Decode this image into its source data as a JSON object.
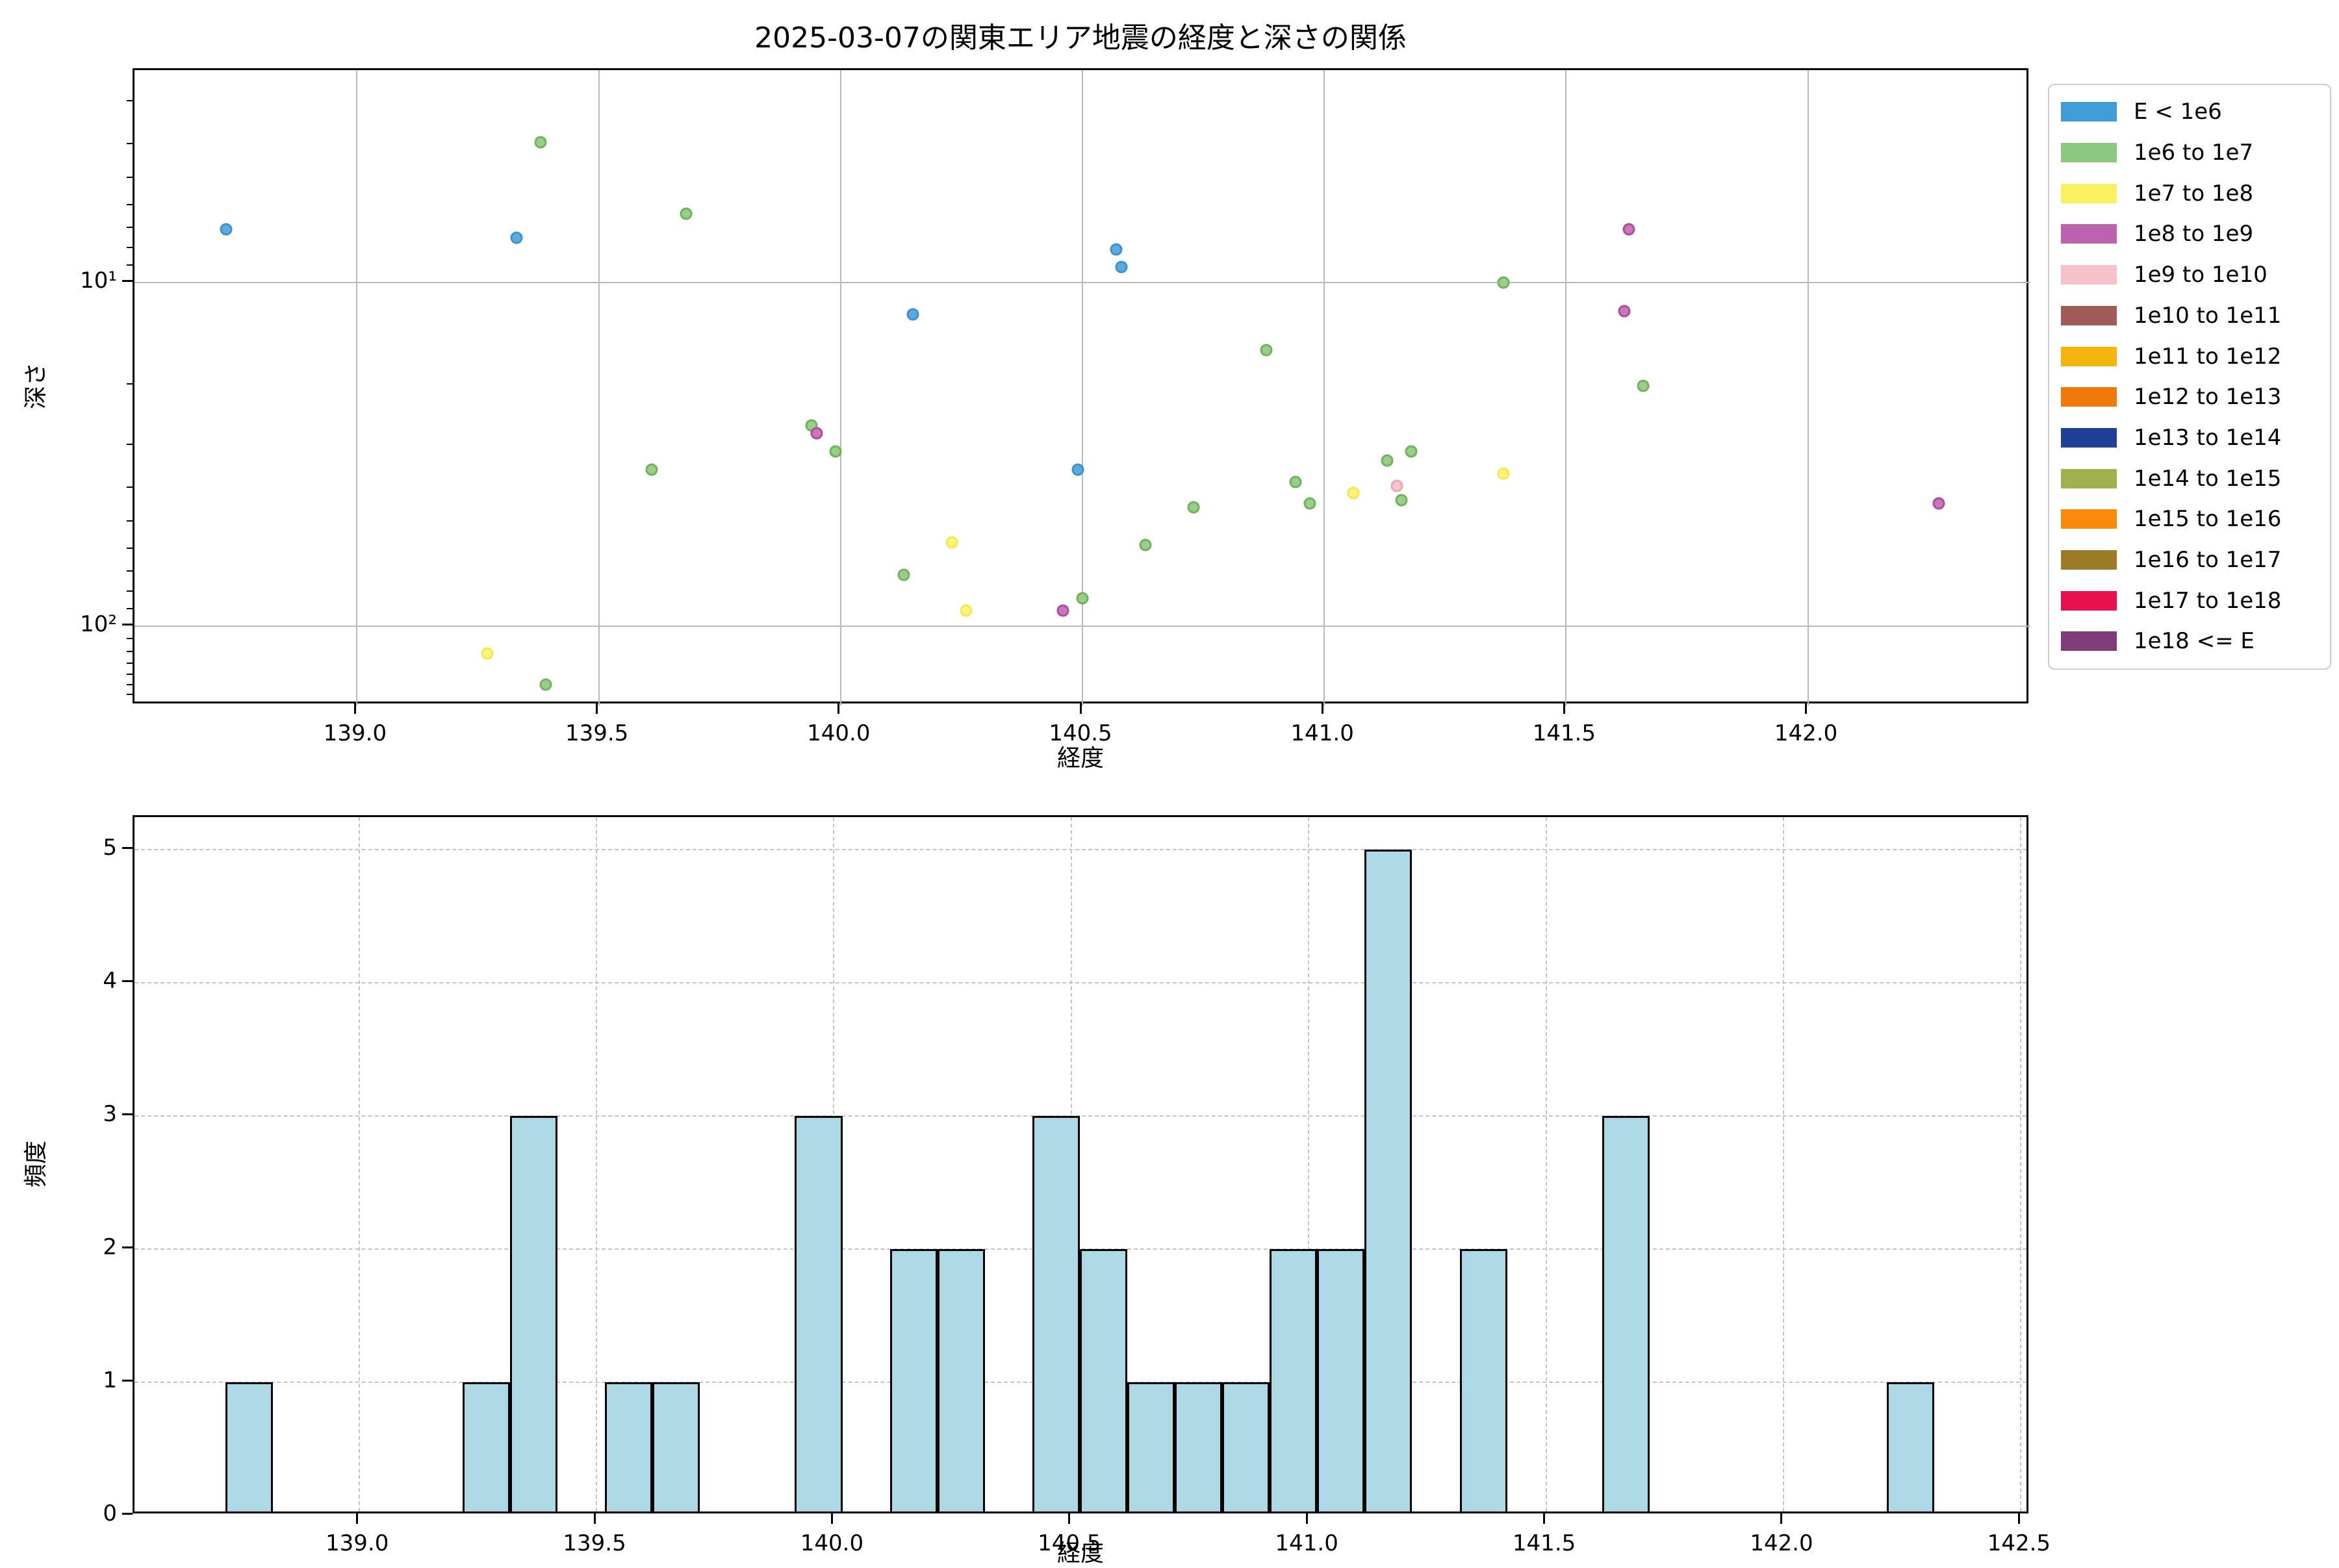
{
  "title": "2025-03-07の関東エリア地震の経度と深さの関係",
  "chart_data": [
    {
      "type": "scatter",
      "title": "2025-03-07の関東エリア地震の経度と深さの関係",
      "xlabel": "経度",
      "ylabel": "深さ",
      "yscale": "log-inverted",
      "xlim": [
        138.54,
        142.46
      ],
      "ylim_top_value": 2.4,
      "ylim_bottom_value": 170,
      "x_ticks": [
        139.0,
        139.5,
        140.0,
        140.5,
        141.0,
        141.5,
        142.0
      ],
      "x_tick_labels": [
        "139.0",
        "139.5",
        "140.0",
        "140.5",
        "141.0",
        "141.5",
        "142.0"
      ],
      "y_ticks": [
        10,
        100
      ],
      "y_tick_labels": [
        "10¹",
        "10²"
      ],
      "grid": "solid",
      "legend_position": "outside-upper-right",
      "series": [
        {
          "name": "E < 1e6",
          "color": "#3E9DD8",
          "edge": "#3A92CE",
          "fill": "#5EAADD",
          "points": [
            [
              138.73,
              7.0
            ],
            [
              139.33,
              7.4
            ],
            [
              140.15,
              12.4
            ],
            [
              140.49,
              35
            ],
            [
              140.57,
              8.0
            ],
            [
              140.58,
              9.0
            ]
          ]
        },
        {
          "name": "1e6 to 1e7",
          "color": "#8CC97E",
          "edge": "#6FB35C",
          "fill": "#99CD88",
          "points": [
            [
              139.38,
              3.9
            ],
            [
              139.39,
              148
            ],
            [
              139.61,
              35
            ],
            [
              139.68,
              6.3
            ],
            [
              139.94,
              26
            ],
            [
              139.99,
              31
            ],
            [
              140.13,
              71
            ],
            [
              140.5,
              83
            ],
            [
              140.63,
              58
            ],
            [
              140.73,
              45
            ],
            [
              140.88,
              15.7
            ],
            [
              140.94,
              38
            ],
            [
              140.97,
              44
            ],
            [
              141.06,
              41
            ],
            [
              141.13,
              33
            ],
            [
              141.15,
              39
            ],
            [
              141.16,
              43
            ],
            [
              141.18,
              31
            ],
            [
              141.37,
              10
            ],
            [
              141.66,
              20
            ]
          ]
        },
        {
          "name": "1e7 to 1e8",
          "color": "#F9F15F",
          "edge": "#F4E94C",
          "fill": "#FAF37E",
          "points": [
            [
              139.27,
              120
            ],
            [
              140.23,
              57
            ],
            [
              140.26,
              90
            ],
            [
              141.06,
              41
            ],
            [
              141.37,
              36
            ]
          ]
        },
        {
          "name": "1e8 to 1e9",
          "color": "#BC62AE",
          "edge": "#AE4C9F",
          "fill": "#C878B6",
          "points": [
            [
              139.95,
              27.5
            ],
            [
              140.46,
              90
            ],
            [
              141.62,
              12.1
            ],
            [
              141.63,
              7.0
            ],
            [
              142.27,
              44
            ]
          ]
        },
        {
          "name": "1e9 to 1e10",
          "color": "#F5C3C7",
          "edge": "#EDAAB1",
          "fill": "#F4C5C9",
          "points": [
            [
              141.15,
              39
            ]
          ]
        },
        {
          "name": "1e10 to 1e11",
          "color": "#A05A58",
          "edge": "#8F4E4C",
          "fill": "#A05A58",
          "points": []
        },
        {
          "name": "1e11 to 1e12",
          "color": "#F5B40B",
          "edge": "#E0A404",
          "fill": "#F5B40B",
          "points": []
        },
        {
          "name": "1e12 to 1e13",
          "color": "#EF790B",
          "edge": "#DC6E06",
          "fill": "#EF790B",
          "points": []
        },
        {
          "name": "1e13 to 1e14",
          "color": "#1F4098",
          "edge": "#1A3788",
          "fill": "#1F4098",
          "points": []
        },
        {
          "name": "1e14 to 1e15",
          "color": "#A2AF4D",
          "edge": "#93A043",
          "fill": "#A2AF4D",
          "points": []
        },
        {
          "name": "1e15 to 1e16",
          "color": "#F88B09",
          "edge": "#E57E04",
          "fill": "#F88B09",
          "points": []
        },
        {
          "name": "1e16 to 1e17",
          "color": "#9D7B26",
          "edge": "#8C6D1F",
          "fill": "#9D7B26",
          "points": []
        },
        {
          "name": "1e17 to 1e18",
          "color": "#E8104F",
          "edge": "#D30A45",
          "fill": "#E8104F",
          "points": []
        },
        {
          "name": "1e18 <= E",
          "color": "#7C3D79",
          "edge": "#6E346B",
          "fill": "#7C3D79",
          "points": []
        }
      ]
    },
    {
      "type": "histogram",
      "xlabel": "経度",
      "ylabel": "頻度",
      "xlim": [
        138.527,
        142.52
      ],
      "ylim": [
        0,
        5.25
      ],
      "bin_width": 0.1,
      "bar_color": "#ADD8E6",
      "bar_edge_color": "#000000",
      "grid": "dashed",
      "x_ticks": [
        139.0,
        139.5,
        140.0,
        140.5,
        141.0,
        141.5,
        142.0,
        142.5
      ],
      "x_tick_labels": [
        "139.0",
        "139.5",
        "140.0",
        "140.5",
        "141.0",
        "141.5",
        "142.0",
        "142.5"
      ],
      "y_ticks": [
        0,
        1,
        2,
        3,
        4,
        5
      ],
      "y_tick_labels": [
        "0",
        "1",
        "2",
        "3",
        "4",
        "5"
      ],
      "bins": [
        {
          "start": 138.72,
          "count": 1
        },
        {
          "start": 139.22,
          "count": 1
        },
        {
          "start": 139.32,
          "count": 3
        },
        {
          "start": 139.52,
          "count": 1
        },
        {
          "start": 139.62,
          "count": 1
        },
        {
          "start": 139.92,
          "count": 3
        },
        {
          "start": 140.12,
          "count": 2
        },
        {
          "start": 140.22,
          "count": 2
        },
        {
          "start": 140.42,
          "count": 3
        },
        {
          "start": 140.52,
          "count": 2
        },
        {
          "start": 140.62,
          "count": 1
        },
        {
          "start": 140.72,
          "count": 1
        },
        {
          "start": 140.82,
          "count": 1
        },
        {
          "start": 140.92,
          "count": 2
        },
        {
          "start": 141.02,
          "count": 2
        },
        {
          "start": 141.12,
          "count": 5
        },
        {
          "start": 141.32,
          "count": 2
        },
        {
          "start": 141.62,
          "count": 3
        },
        {
          "start": 142.22,
          "count": 1
        }
      ]
    }
  ],
  "legend": {
    "entries": [
      {
        "label": "E < 1e6",
        "color": "#3E9DD8"
      },
      {
        "label": "1e6 to 1e7",
        "color": "#8CC97E"
      },
      {
        "label": "1e7 to 1e8",
        "color": "#F9F15F"
      },
      {
        "label": "1e8 to 1e9",
        "color": "#BC62AE"
      },
      {
        "label": "1e9 to 1e10",
        "color": "#F5C3C7"
      },
      {
        "label": "1e10 to 1e11",
        "color": "#A05A58"
      },
      {
        "label": "1e11 to 1e12",
        "color": "#F5B40B"
      },
      {
        "label": "1e12 to 1e13",
        "color": "#EF790B"
      },
      {
        "label": "1e13 to 1e14",
        "color": "#1F4098"
      },
      {
        "label": "1e14 to 1e15",
        "color": "#A2AF4D"
      },
      {
        "label": "1e15 to 1e16",
        "color": "#F88B09"
      },
      {
        "label": "1e16 to 1e17",
        "color": "#9D7B26"
      },
      {
        "label": "1e17 to 1e18",
        "color": "#E8104F"
      },
      {
        "label": "1e18 <= E",
        "color": "#7C3D79"
      }
    ]
  }
}
